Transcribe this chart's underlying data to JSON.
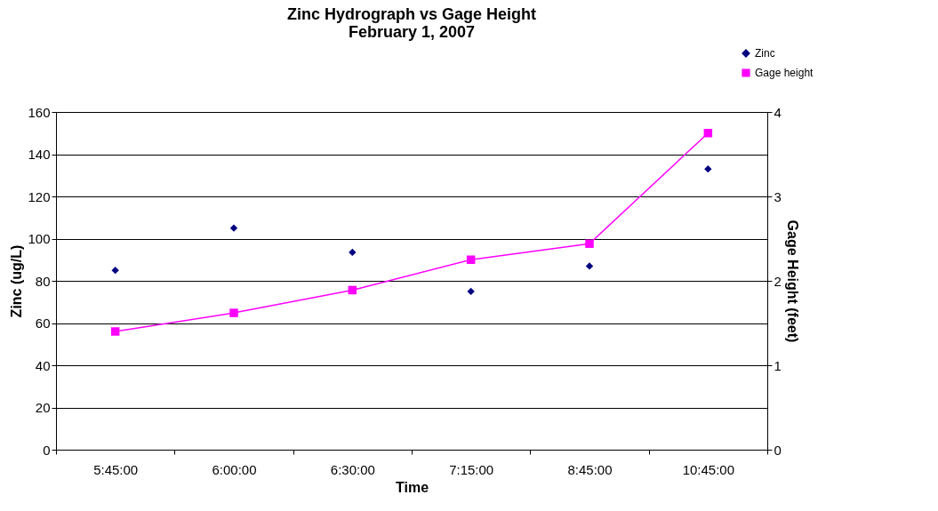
{
  "chart_data": {
    "type": "scatter",
    "title": "Zinc Hydrograph vs Gage Height\nFebruary 1, 2007",
    "xlabel": "Time",
    "ylabel": "Zinc (ug/L)",
    "y2label": "Gage Height (feet)",
    "categories": [
      "5:45:00",
      "6:00:00",
      "6:30:00",
      "7:15:00",
      "8:45:00",
      "10:45:00"
    ],
    "series": [
      {
        "name": "Zinc",
        "color": "#000080",
        "marker": "diamond",
        "values": [
          85,
          105,
          93.5,
          75,
          87,
          133
        ]
      },
      {
        "name": "Gage height",
        "type": "line",
        "axis": "y2",
        "color": "#ff00ff",
        "marker": "square",
        "values": [
          1.4,
          1.62,
          1.89,
          2.25,
          2.44,
          3.75
        ]
      }
    ],
    "ylim": [
      0,
      160
    ],
    "yticks": [
      0,
      20,
      40,
      60,
      80,
      100,
      120,
      140,
      160
    ],
    "y2lim": [
      0,
      4
    ],
    "y2ticks": [
      0,
      1,
      2,
      3,
      4
    ],
    "grid": "y",
    "legend": "top right"
  }
}
